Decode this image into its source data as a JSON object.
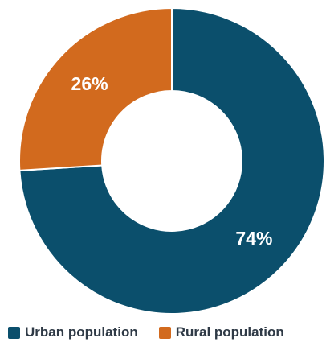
{
  "chart_data": {
    "type": "pie",
    "title": "",
    "categories": [
      "Urban population",
      "Rural population"
    ],
    "values": [
      74,
      26
    ],
    "unit": "%",
    "data_labels": [
      "74%",
      "26%"
    ],
    "colors": [
      "#0b4f6c",
      "#d26a1e"
    ],
    "donut": true,
    "legend": "bottom"
  },
  "legend": {
    "items": [
      {
        "label": "Urban population",
        "color": "#0b4f6c"
      },
      {
        "label": "Rural population",
        "color": "#d26a1e"
      }
    ]
  }
}
